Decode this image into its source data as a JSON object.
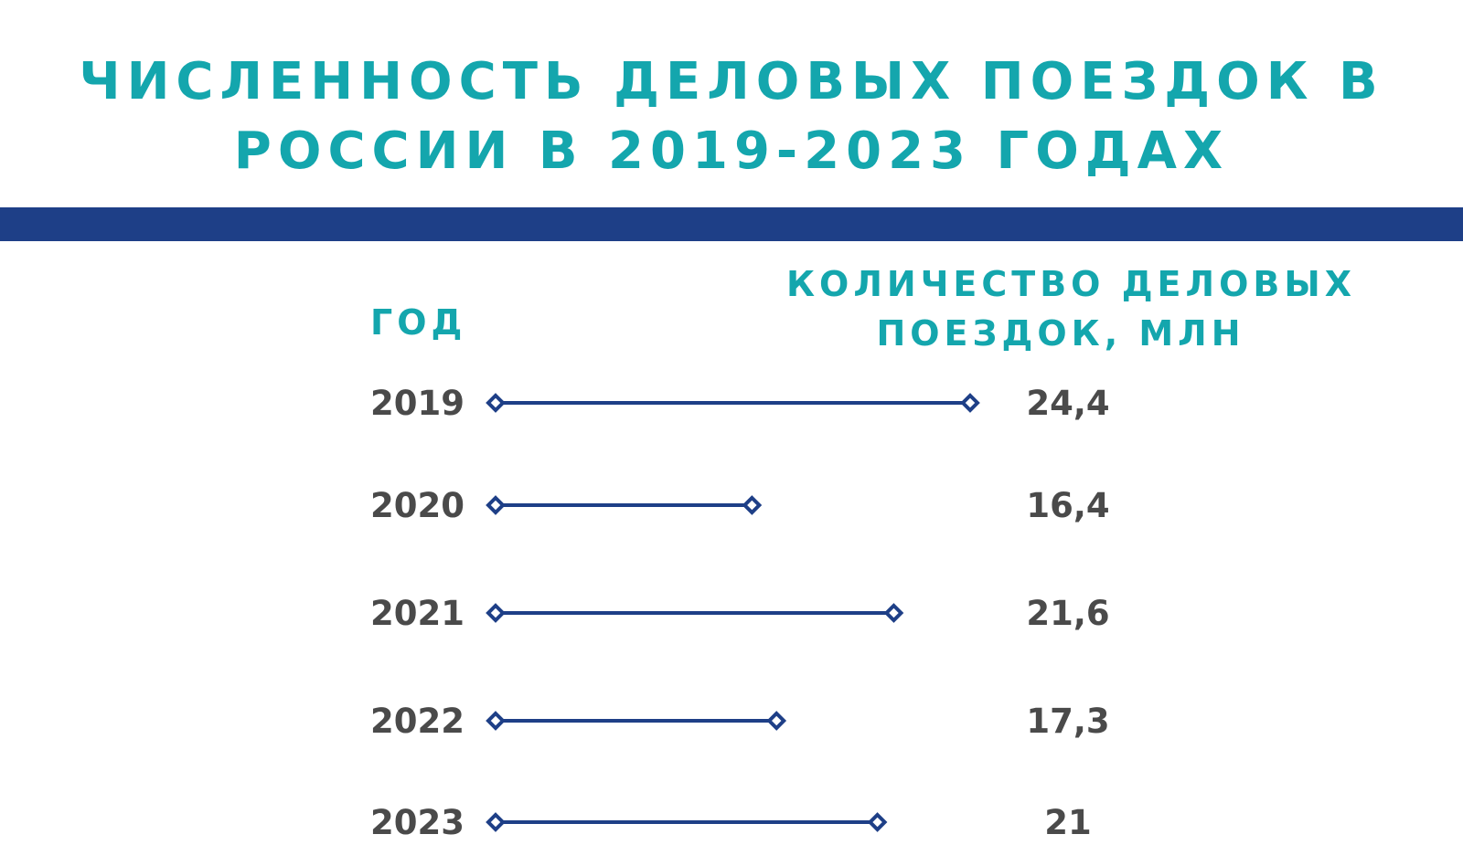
{
  "title": {
    "line1": "ЧИСЛЕННОСТЬ ДЕЛОВЫХ ПОЕЗДОК В",
    "line2": "РОССИИ В 2019-2023 ГОДАХ"
  },
  "column_headers": {
    "year": "ГОД",
    "value_line1": "КОЛИЧЕСТВО ДЕЛОВЫХ",
    "value_line2": "ПОЕЗДОК, МЛН"
  },
  "colors": {
    "accent": "#14a6ad",
    "bar": "#1e3f87",
    "text": "#4a4a4a"
  },
  "chart_data": {
    "type": "bar",
    "orientation": "horizontal",
    "categories": [
      "2019",
      "2020",
      "2021",
      "2022",
      "2023"
    ],
    "values": [
      24.4,
      16.4,
      21.6,
      17.3,
      21
    ],
    "value_labels": [
      "24,4",
      "16,4",
      "21,6",
      "17,3",
      "21"
    ],
    "xlim": [
      7,
      24.4
    ],
    "grid": false
  }
}
